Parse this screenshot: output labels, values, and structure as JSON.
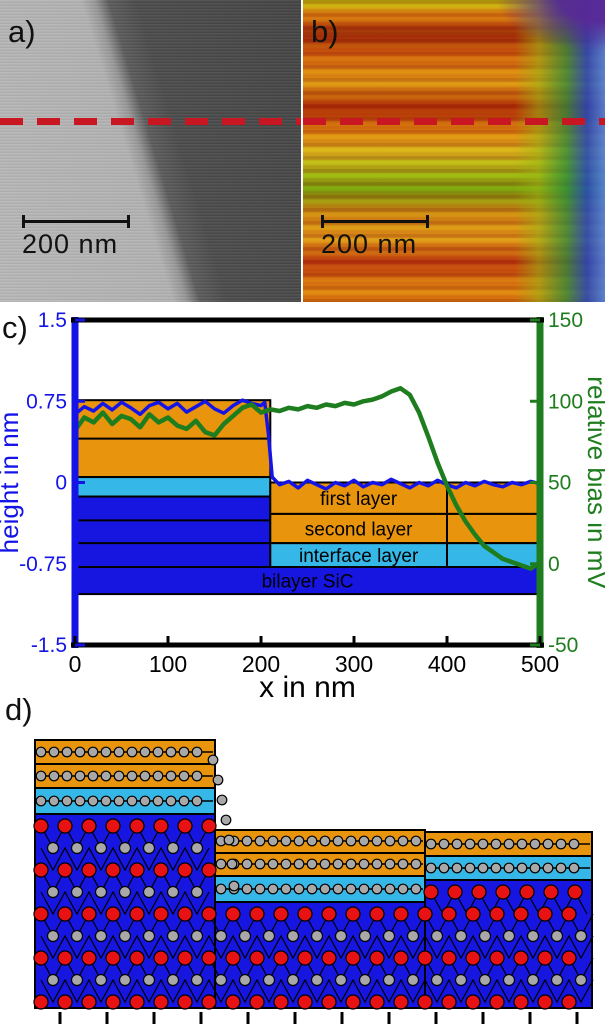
{
  "panel_a": {
    "label": "a)",
    "scalebar_label": "200 nm"
  },
  "panel_b": {
    "label": "b)",
    "scalebar_label": "200 nm"
  },
  "panel_c": {
    "label": "c)"
  },
  "panel_d": {
    "label": "d)"
  },
  "colors": {
    "dash_red": "#c81622",
    "graphene_orange": "#e8940c",
    "interface_cyan": "#35b8e8",
    "sic_blue": "#1616e0",
    "atom_gray": "#a8a8a8",
    "atom_red": "#e81212",
    "height_blue": "#1414e6",
    "bias_green": "#1e7d1e"
  },
  "chart_data": {
    "type": "line",
    "title": "",
    "xlabel": "x in nm",
    "ylabel_left": "height in nm",
    "ylabel_right": "relative bias in mV",
    "xlim": [
      0,
      500
    ],
    "ylim_left": [
      -1.5,
      1.5
    ],
    "ylim_right": [
      -50,
      150
    ],
    "xticks": [
      0,
      100,
      200,
      300,
      400,
      500
    ],
    "yticks_left": [
      -1.5,
      -0.75,
      0,
      0.75,
      1.5
    ],
    "yticks_right": [
      -50,
      0,
      50,
      100,
      150
    ],
    "grid": false,
    "axis_colors": {
      "left": "#1414e6",
      "right": "#1e7d1e",
      "bottom": "#000000"
    },
    "series": [
      {
        "name": "height profile",
        "axis": "left",
        "color": "#1414e6",
        "points": [
          [
            0,
            0.63
          ],
          [
            10,
            0.7
          ],
          [
            20,
            0.66
          ],
          [
            30,
            0.73
          ],
          [
            40,
            0.67
          ],
          [
            50,
            0.74
          ],
          [
            60,
            0.69
          ],
          [
            70,
            0.63
          ],
          [
            80,
            0.71
          ],
          [
            90,
            0.74
          ],
          [
            100,
            0.68
          ],
          [
            110,
            0.73
          ],
          [
            120,
            0.65
          ],
          [
            130,
            0.7
          ],
          [
            140,
            0.75
          ],
          [
            150,
            0.68
          ],
          [
            160,
            0.64
          ],
          [
            170,
            0.71
          ],
          [
            180,
            0.76
          ],
          [
            190,
            0.73
          ],
          [
            200,
            0.71
          ],
          [
            204,
            0.74
          ],
          [
            208,
            0.45
          ],
          [
            212,
            0.05
          ],
          [
            220,
            -0.02
          ],
          [
            230,
            0.01
          ],
          [
            240,
            -0.05
          ],
          [
            250,
            0.02
          ],
          [
            260,
            -0.02
          ],
          [
            270,
            -0.06
          ],
          [
            280,
            0.0
          ],
          [
            290,
            -0.03
          ],
          [
            300,
            0.02
          ],
          [
            310,
            -0.04
          ],
          [
            320,
            0.0
          ],
          [
            330,
            -0.02
          ],
          [
            340,
            0.03
          ],
          [
            350,
            -0.01
          ],
          [
            360,
            -0.05
          ],
          [
            370,
            0.0
          ],
          [
            380,
            -0.03
          ],
          [
            390,
            0.02
          ],
          [
            400,
            -0.02
          ],
          [
            410,
            -0.05
          ],
          [
            420,
            0.0
          ],
          [
            430,
            -0.03
          ],
          [
            440,
            0.01
          ],
          [
            450,
            -0.02
          ],
          [
            460,
            -0.04
          ],
          [
            470,
            0.0
          ],
          [
            480,
            -0.02
          ],
          [
            490,
            0.01
          ],
          [
            500,
            -0.01
          ]
        ]
      },
      {
        "name": "relative bias profile",
        "axis": "right",
        "color": "#1e7d1e",
        "points": [
          [
            0,
            82
          ],
          [
            10,
            90
          ],
          [
            20,
            87
          ],
          [
            30,
            93
          ],
          [
            40,
            86
          ],
          [
            50,
            91
          ],
          [
            60,
            89
          ],
          [
            70,
            84
          ],
          [
            80,
            92
          ],
          [
            90,
            87
          ],
          [
            100,
            90
          ],
          [
            110,
            85
          ],
          [
            120,
            83
          ],
          [
            130,
            88
          ],
          [
            140,
            81
          ],
          [
            150,
            79
          ],
          [
            160,
            86
          ],
          [
            170,
            91
          ],
          [
            180,
            96
          ],
          [
            190,
            98
          ],
          [
            200,
            93
          ],
          [
            210,
            95
          ],
          [
            220,
            94
          ],
          [
            230,
            96
          ],
          [
            240,
            95
          ],
          [
            250,
            97
          ],
          [
            260,
            96
          ],
          [
            270,
            98
          ],
          [
            280,
            97
          ],
          [
            290,
            99
          ],
          [
            300,
            98
          ],
          [
            310,
            100
          ],
          [
            320,
            101
          ],
          [
            330,
            103
          ],
          [
            340,
            106
          ],
          [
            350,
            108
          ],
          [
            360,
            104
          ],
          [
            370,
            93
          ],
          [
            380,
            78
          ],
          [
            390,
            62
          ],
          [
            400,
            48
          ],
          [
            410,
            36
          ],
          [
            420,
            26
          ],
          [
            430,
            18
          ],
          [
            440,
            11
          ],
          [
            450,
            7
          ],
          [
            460,
            3
          ],
          [
            470,
            1
          ],
          [
            480,
            -1
          ],
          [
            490,
            -3
          ],
          [
            500,
            1
          ]
        ]
      }
    ],
    "layers": [
      {
        "name": "top-terrace-graphene",
        "color": "#e8940c",
        "x0": 0,
        "x1": 210,
        "y0": 0.05,
        "y1": 0.76,
        "dividers": [
          0.405
        ]
      },
      {
        "name": "top-terrace-interface",
        "color": "#35b8e8",
        "x0": 0,
        "x1": 210,
        "y0": -0.13,
        "y1": 0.05
      },
      {
        "name": "top-terrace-sic",
        "color": "#1616e0",
        "x0": 0,
        "x1": 210,
        "y0": -0.78,
        "y1": -0.13,
        "dividers": [
          -0.35,
          -0.56
        ]
      },
      {
        "name": "first-layer",
        "label": "first layer",
        "color": "#e8940c",
        "x0": 210,
        "x1": 400,
        "y0": -0.29,
        "y1": 0.0
      },
      {
        "name": "second-layer",
        "label": "second layer",
        "color": "#e8940c",
        "x0": 210,
        "x1": 400,
        "y0": -0.56,
        "y1": -0.29
      },
      {
        "name": "interface-layer",
        "label": "interface layer",
        "color": "#35b8e8",
        "x0": 210,
        "x1": 400,
        "y0": -0.78,
        "y1": -0.56
      },
      {
        "name": "first-layer-cont",
        "color": "#e8940c",
        "x0": 400,
        "x1": 500,
        "y0": -0.29,
        "y1": 0.0
      },
      {
        "name": "second-layer-cont",
        "color": "#e8940c",
        "x0": 400,
        "x1": 500,
        "y0": -0.56,
        "y1": -0.29
      },
      {
        "name": "interface-layer-cont",
        "color": "#35b8e8",
        "x0": 400,
        "x1": 500,
        "y0": -0.78,
        "y1": -0.56
      },
      {
        "name": "bilayer-sic",
        "label": "bilayer SiC",
        "color": "#1616e0",
        "x0": 0,
        "x1": 500,
        "y0": -1.03,
        "y1": -0.78
      }
    ]
  }
}
